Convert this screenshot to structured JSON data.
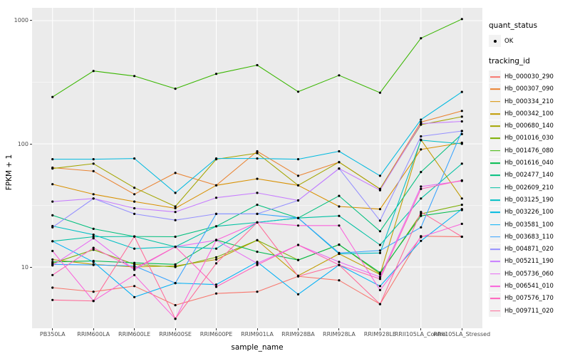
{
  "chart_data": {
    "type": "line",
    "title": "",
    "xlabel": "sample_name",
    "ylabel": "FPKM + 1",
    "y_scale": "log10",
    "y_ticks": [
      10,
      100,
      1000
    ],
    "ylim": [
      3.2,
      1270
    ],
    "grid": true,
    "legend_position": "right",
    "point_color": "#000000",
    "point_legend": {
      "title": "quant_status",
      "items": [
        {
          "label": "OK"
        }
      ]
    },
    "series_legend_title": "tracking_id",
    "x_categories": [
      "PB350LA",
      "RRIM600LA",
      "RRIM600LE",
      "RRIM600SE",
      "RRIM600PE",
      "RRIM901LA",
      "RRIM928BA",
      "RRIM928LA",
      "RRIM928LE",
      "RRII105LA_Control",
      "RRII105LA_Stressed"
    ],
    "series": [
      {
        "name": "Hb_000030_290",
        "color": "#F8766D",
        "values": [
          6.8,
          6.3,
          7.0,
          4.9,
          6.1,
          6.3,
          8.4,
          7.8,
          5.0,
          17.8,
          17.6
        ]
      },
      {
        "name": "Hb_000307_090",
        "color": "#EA8331",
        "values": [
          64,
          60,
          39,
          58,
          46,
          87,
          55,
          71,
          43,
          150,
          185
        ]
      },
      {
        "name": "Hb_000334_210",
        "color": "#D89000",
        "values": [
          47,
          39,
          34,
          30,
          46,
          52,
          46,
          31,
          29.5,
          90,
          102
        ]
      },
      {
        "name": "Hb_000342_100",
        "color": "#C09B00",
        "values": [
          11.5,
          10.5,
          10,
          10.2,
          11.5,
          16.5,
          8.5,
          12.8,
          8.7,
          108,
          36
        ]
      },
      {
        "name": "Hb_000680_140",
        "color": "#A3A500",
        "values": [
          63,
          69,
          44,
          31,
          75,
          84,
          46,
          71,
          43,
          143,
          166
        ]
      },
      {
        "name": "Hb_001016_030",
        "color": "#7CAE00",
        "values": [
          10.7,
          13.8,
          10.5,
          10,
          12,
          16.5,
          11.4,
          15.2,
          8.8,
          27,
          32
        ]
      },
      {
        "name": "Hb_001476_080",
        "color": "#39B600",
        "values": [
          240,
          390,
          355,
          280,
          370,
          435,
          265,
          360,
          260,
          720,
          1030
        ]
      },
      {
        "name": "Hb_001616_040",
        "color": "#00BB4E",
        "values": [
          11,
          11.2,
          10.8,
          10.5,
          16.6,
          13.3,
          11.4,
          15.2,
          9,
          26,
          29
        ]
      },
      {
        "name": "Hb_002477_140",
        "color": "#00BF7D",
        "values": [
          26.3,
          20.4,
          17.7,
          17.6,
          21.4,
          32,
          25,
          37.8,
          19.5,
          59,
          120
        ]
      },
      {
        "name": "Hb_002609_210",
        "color": "#00C1A3",
        "values": [
          16.2,
          17.6,
          17.7,
          14.6,
          21.4,
          23,
          25,
          26,
          15.1,
          36,
          69
        ]
      },
      {
        "name": "Hb_003125_190",
        "color": "#00BFC4",
        "values": [
          21.5,
          18.3,
          14.1,
          14.6,
          14.1,
          23,
          25,
          12.8,
          13,
          107,
          100
        ]
      },
      {
        "name": "Hb_003226_100",
        "color": "#00BAE0",
        "values": [
          75,
          75,
          76,
          40,
          76,
          76,
          75,
          87,
          55,
          157,
          264
        ]
      },
      {
        "name": "Hb_003581_100",
        "color": "#00B0F6",
        "values": [
          16.2,
          11,
          5.7,
          7.4,
          7.2,
          11,
          6.0,
          10.4,
          7.0,
          16.3,
          29.5
        ]
      },
      {
        "name": "Hb_003683_110",
        "color": "#35A2FF",
        "values": [
          10.5,
          10.4,
          10.2,
          7.4,
          27,
          27,
          25,
          13,
          13.6,
          21,
          127
        ]
      },
      {
        "name": "Hb_004871_020",
        "color": "#9590FF",
        "values": [
          21,
          36,
          27,
          24,
          27,
          27,
          34.7,
          63,
          23.8,
          115,
          127
        ]
      },
      {
        "name": "Hb_005211_190",
        "color": "#C77CFF",
        "values": [
          34,
          36,
          30,
          28,
          36.5,
          40,
          34.7,
          63,
          42,
          146,
          152
        ]
      },
      {
        "name": "Hb_005736_060",
        "color": "#E76BF3",
        "values": [
          10.3,
          17.1,
          9.5,
          14.6,
          16.5,
          10.7,
          15.1,
          11,
          8.3,
          45,
          50
        ]
      },
      {
        "name": "Hb_006541_010",
        "color": "#FA62DB",
        "values": [
          13.5,
          5.3,
          8.6,
          3.8,
          16.5,
          23,
          21.7,
          21.7,
          6.5,
          17.5,
          22.4
        ]
      },
      {
        "name": "Hb_007576_170",
        "color": "#FF62BC",
        "values": [
          8.6,
          14.3,
          9.7,
          14.6,
          6.9,
          10.4,
          15.1,
          10.4,
          8.0,
          43,
          50.5
        ]
      },
      {
        "name": "Hb_009711_020",
        "color": "#FF6A98",
        "values": [
          5.4,
          5.3,
          17.7,
          3.8,
          10.7,
          23,
          8.4,
          10.4,
          5.0,
          28,
          17.6
        ]
      }
    ]
  },
  "theme": {
    "panel_bg": "#EBEBEB",
    "grid_color": "#FFFFFF",
    "tick_text_color": "#4D4D4D",
    "tick_mark_color": "#333333",
    "legend_key_bg": "#F2F2F2"
  }
}
